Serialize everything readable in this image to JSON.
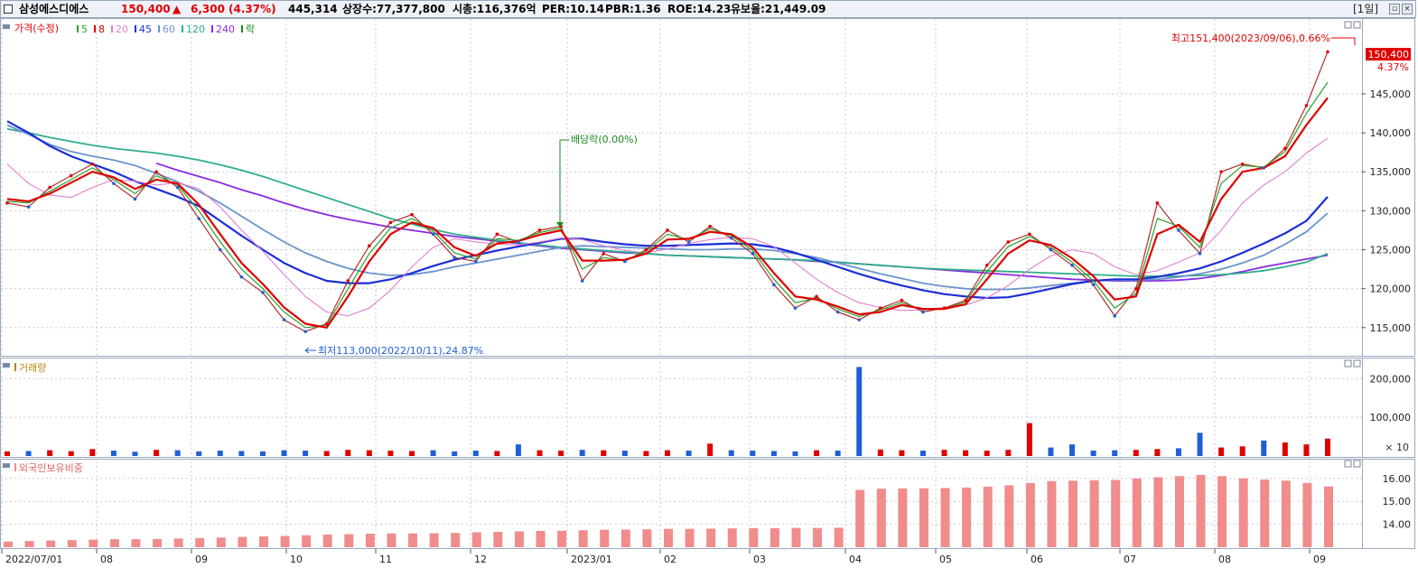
{
  "header": {
    "name": "삼성에스디에스",
    "price": "150,400",
    "arrow": "▲",
    "change": "6,300",
    "change_pct": "(4.37%)",
    "volume": "445,314",
    "shares": "상장수:77,377,800",
    "market_cap": "시총:116,376억",
    "per": "PER:10.14",
    "pbr": "PBR:1.36",
    "roe": "ROE:14.23",
    "float": "유보율:21,449.09",
    "period": "[1일]"
  },
  "legend": {
    "price": "가격(수정)",
    "ma": [
      {
        "label": "5",
        "color": "#2ca02c"
      },
      {
        "label": "8",
        "color": "#e00000"
      },
      {
        "label": "20",
        "color": "#e080d0"
      },
      {
        "label": "45",
        "color": "#1a2ed6"
      },
      {
        "label": "60",
        "color": "#6a94cc"
      },
      {
        "label": "120",
        "color": "#2fae8a"
      },
      {
        "label": "240",
        "color": "#8a2be2"
      }
    ],
    "ex": "락",
    "volume": "거래량",
    "foreign": "외국인보유비중"
  },
  "annotations": {
    "high": "최고151,400(2023/09/06),0.66%",
    "low": "최저113,000(2022/10/11),24.87%",
    "dividend": "배당락(0.00%)",
    "last_price": "150,400",
    "last_pct": "4.37%",
    "volume_unit": "× 10"
  },
  "colors": {
    "up": "#e00000",
    "down": "#1f5fd6",
    "foreign_bar": "#f08c8c"
  },
  "chart_data": [
    {
      "type": "line",
      "title": "가격(수정)",
      "x": [
        "2022/07/01",
        "2022/07/08",
        "2022/07/15",
        "2022/07/22",
        "2022/07/29",
        "2022/08/05",
        "2022/08/12",
        "2022/08/19",
        "2022/08/26",
        "2022/09/02",
        "2022/09/09",
        "2022/09/16",
        "2022/09/23",
        "2022/09/30",
        "2022/10/07",
        "2022/10/14",
        "2022/10/21",
        "2022/10/28",
        "2022/11/04",
        "2022/11/11",
        "2022/11/18",
        "2022/11/25",
        "2022/12/02",
        "2022/12/09",
        "2022/12/16",
        "2022/12/23",
        "2022/12/30",
        "2023/01/06",
        "2023/01/13",
        "2023/01/20",
        "2023/01/27",
        "2023/02/03",
        "2023/02/10",
        "2023/02/17",
        "2023/02/24",
        "2023/03/03",
        "2023/03/10",
        "2023/03/17",
        "2023/03/24",
        "2023/03/31",
        "2023/04/07",
        "2023/04/14",
        "2023/04/21",
        "2023/04/28",
        "2023/05/05",
        "2023/05/12",
        "2023/05/19",
        "2023/05/26",
        "2023/06/02",
        "2023/06/09",
        "2023/06/16",
        "2023/06/23",
        "2023/06/30",
        "2023/07/07",
        "2023/07/14",
        "2023/07/21",
        "2023/07/28",
        "2023/08/04",
        "2023/08/11",
        "2023/08/18",
        "2023/08/25",
        "2023/09/01",
        "2023/09/05"
      ],
      "series": [
        {
          "name": "가격(수정)",
          "values": [
            131000,
            130500,
            133000,
            134500,
            136000,
            133500,
            131500,
            135000,
            133000,
            129000,
            125000,
            121500,
            119500,
            116000,
            114500,
            115500,
            121000,
            125500,
            128500,
            129500,
            127000,
            124000,
            123500,
            127000,
            126000,
            127500,
            128000,
            121000,
            124500,
            123500,
            125000,
            127500,
            126000,
            128000,
            126500,
            124500,
            120500,
            117500,
            119000,
            117000,
            116000,
            117500,
            118500,
            117000,
            117500,
            118500,
            123000,
            126000,
            127000,
            125000,
            123000,
            120500,
            116500,
            120000,
            131000,
            127500,
            124500,
            135000,
            136000,
            135500,
            138000,
            143500,
            150400
          ]
        },
        {
          "name": "5",
          "values": [
            131200,
            131000,
            132500,
            134000,
            135500,
            134000,
            132200,
            134500,
            133300,
            130000,
            126000,
            122500,
            120000,
            117000,
            115000,
            115300,
            120000,
            124500,
            127800,
            129000,
            127400,
            124600,
            123800,
            126400,
            126200,
            127200,
            127800,
            122500,
            124000,
            123600,
            124800,
            127000,
            126300,
            127700,
            126800,
            124900,
            121200,
            118200,
            118800,
            117400,
            116400,
            117300,
            118200,
            117300,
            117400,
            118300,
            122200,
            125400,
            126700,
            125300,
            123400,
            121000,
            117500,
            119400,
            129000,
            128000,
            125300,
            133500,
            135800,
            135600,
            137600,
            142500,
            146500
          ]
        },
        {
          "name": "8",
          "values": [
            131500,
            131200,
            132200,
            133600,
            135000,
            134300,
            132800,
            134000,
            133500,
            130800,
            127000,
            123300,
            120600,
            117600,
            115500,
            115000,
            119000,
            123500,
            127000,
            128500,
            127800,
            125300,
            124200,
            125800,
            126100,
            126900,
            127500,
            123600,
            123600,
            123700,
            124500,
            126300,
            126400,
            127300,
            127000,
            125300,
            122000,
            119000,
            118600,
            117700,
            116700,
            117000,
            117900,
            117400,
            117400,
            118000,
            121200,
            124500,
            126200,
            125600,
            123900,
            121600,
            118600,
            119000,
            127000,
            128200,
            126000,
            131500,
            135000,
            135500,
            137000,
            141000,
            144500
          ]
        },
        {
          "name": "20",
          "values": [
            136000,
            133500,
            132000,
            131700,
            133000,
            134000,
            133800,
            133300,
            133600,
            132800,
            130500,
            127500,
            124800,
            121800,
            119000,
            117000,
            116500,
            117500,
            119800,
            122800,
            125300,
            126400,
            126000,
            125700,
            125600,
            126000,
            126500,
            126300,
            125500,
            124900,
            124600,
            125100,
            125800,
            126300,
            126600,
            126400,
            125400,
            123300,
            121200,
            119500,
            118200,
            117600,
            117200,
            117300,
            117600,
            117900,
            118800,
            120400,
            122500,
            124200,
            125000,
            124500,
            122800,
            121800,
            122300,
            123400,
            124600,
            127500,
            131000,
            133300,
            135000,
            137400,
            139300
          ]
        },
        {
          "name": "45",
          "values": [
            141500,
            140000,
            138300,
            137000,
            136000,
            135000,
            133800,
            132800,
            131800,
            130600,
            128700,
            126800,
            125000,
            123300,
            122000,
            121000,
            120700,
            120700,
            121200,
            122000,
            122900,
            123700,
            124300,
            124900,
            125400,
            125900,
            126400,
            126400,
            126000,
            125700,
            125500,
            125500,
            125600,
            125700,
            125800,
            125700,
            125300,
            124600,
            123700,
            122800,
            121900,
            121100,
            120400,
            119800,
            119300,
            119000,
            118800,
            118900,
            119400,
            120000,
            120600,
            121000,
            121200,
            121200,
            121500,
            122000,
            122600,
            123500,
            124600,
            125800,
            127100,
            128700,
            131800
          ]
        },
        {
          "name": "60",
          "values": [
            141000,
            139800,
            138500,
            137600,
            137000,
            136500,
            135800,
            134800,
            133700,
            132500,
            131000,
            129300,
            127600,
            126000,
            124600,
            123500,
            122600,
            122000,
            121700,
            121800,
            122200,
            122800,
            123300,
            123800,
            124300,
            124800,
            125300,
            125500,
            125400,
            125300,
            125200,
            125100,
            125000,
            125000,
            125100,
            125100,
            124900,
            124500,
            124000,
            123300,
            122600,
            121900,
            121300,
            120700,
            120300,
            120000,
            119900,
            119900,
            120100,
            120400,
            120700,
            121000,
            121100,
            121100,
            121200,
            121500,
            121900,
            122500,
            123300,
            124300,
            125700,
            127300,
            129700
          ]
        },
        {
          "name": "120",
          "values": [
            140500,
            140000,
            139400,
            138900,
            138400,
            138000,
            137700,
            137400,
            137000,
            136500,
            135900,
            135200,
            134400,
            133500,
            132600,
            131700,
            130800,
            129900,
            129000,
            128300,
            127600,
            127000,
            126600,
            126200,
            125900,
            125600,
            125300,
            125100,
            124900,
            124700,
            124500,
            124300,
            124200,
            124100,
            124000,
            123900,
            123800,
            123700,
            123600,
            123400,
            123200,
            123000,
            122800,
            122600,
            122500,
            122400,
            122300,
            122200,
            122100,
            122000,
            121900,
            121800,
            121700,
            121600,
            121600,
            121600,
            121700,
            121800,
            122000,
            122300,
            122800,
            123400,
            124500
          ]
        },
        {
          "name": "240",
          "values": [
            null,
            null,
            null,
            null,
            null,
            null,
            null,
            136100,
            135200,
            134400,
            133600,
            132700,
            131900,
            131000,
            130200,
            129500,
            128900,
            128400,
            127900,
            127500,
            127100,
            126700,
            126400,
            126100,
            125800,
            125500,
            125200,
            125000,
            124800,
            124600,
            124500,
            124300,
            124200,
            124100,
            124000,
            123900,
            123800,
            123700,
            123500,
            123400,
            123200,
            123000,
            122800,
            122600,
            122400,
            122200,
            122000,
            121800,
            121600,
            121400,
            121200,
            121100,
            121000,
            121000,
            121000,
            121100,
            121300,
            121700,
            122200,
            122800,
            123300,
            123800,
            124300
          ]
        }
      ],
      "ylim": [
        111500,
        154500
      ],
      "y_ticks": [
        115000,
        120000,
        125000,
        130000,
        135000,
        140000,
        145000
      ],
      "y_tick_labels": [
        "115,000",
        "120,000",
        "125,000",
        "130,000",
        "135,000",
        "140,000",
        "145,000"
      ],
      "grid": true
    },
    {
      "type": "bar",
      "title": "거래량",
      "x": [
        "2022/07/01",
        "2022/07/08",
        "2022/07/15",
        "2022/07/22",
        "2022/07/29",
        "2022/08/05",
        "2022/08/12",
        "2022/08/19",
        "2022/08/26",
        "2022/09/02",
        "2022/09/09",
        "2022/09/16",
        "2022/09/23",
        "2022/09/30",
        "2022/10/07",
        "2022/10/14",
        "2022/10/21",
        "2022/10/28",
        "2022/11/04",
        "2022/11/11",
        "2022/11/18",
        "2022/11/25",
        "2022/12/02",
        "2022/12/09",
        "2022/12/16",
        "2022/12/23",
        "2022/12/30",
        "2023/01/06",
        "2023/01/13",
        "2023/01/20",
        "2023/01/27",
        "2023/02/03",
        "2023/02/10",
        "2023/02/17",
        "2023/02/24",
        "2023/03/03",
        "2023/03/10",
        "2023/03/17",
        "2023/03/24",
        "2023/03/31",
        "2023/04/07",
        "2023/04/14",
        "2023/04/21",
        "2023/04/28",
        "2023/05/05",
        "2023/05/12",
        "2023/05/19",
        "2023/05/26",
        "2023/06/02",
        "2023/06/09",
        "2023/06/16",
        "2023/06/23",
        "2023/06/30",
        "2023/07/07",
        "2023/07/14",
        "2023/07/21",
        "2023/07/28",
        "2023/08/04",
        "2023/08/11",
        "2023/08/18",
        "2023/08/25",
        "2023/09/01",
        "2023/09/05"
      ],
      "values": [
        12000,
        13000,
        15000,
        12500,
        18000,
        14000,
        11000,
        16000,
        15000,
        12000,
        14000,
        13000,
        12000,
        15000,
        14000,
        13000,
        16000,
        15000,
        14000,
        13000,
        15000,
        12000,
        14000,
        13000,
        30000,
        15000,
        14000,
        16000,
        15000,
        14000,
        13000,
        15000,
        14000,
        32000,
        15000,
        14000,
        13000,
        12000,
        15000,
        14000,
        230000,
        17000,
        15000,
        14000,
        16000,
        15000,
        14000,
        16000,
        85000,
        22000,
        30000,
        14000,
        15000,
        16000,
        18000,
        20000,
        60000,
        22000,
        25000,
        40000,
        35000,
        30000,
        45000
      ],
      "ylim": [
        0,
        245000
      ],
      "y_ticks": [
        100000,
        200000
      ],
      "y_tick_labels": [
        "100,000",
        "200,000"
      ]
    },
    {
      "type": "bar",
      "title": "외국인보유비중",
      "x": [
        "2022/07/01",
        "2022/07/08",
        "2022/07/15",
        "2022/07/22",
        "2022/07/29",
        "2022/08/05",
        "2022/08/12",
        "2022/08/19",
        "2022/08/26",
        "2022/09/02",
        "2022/09/09",
        "2022/09/16",
        "2022/09/23",
        "2022/09/30",
        "2022/10/07",
        "2022/10/14",
        "2022/10/21",
        "2022/10/28",
        "2022/11/04",
        "2022/11/11",
        "2022/11/18",
        "2022/11/25",
        "2022/12/02",
        "2022/12/09",
        "2022/12/16",
        "2022/12/23",
        "2022/12/30",
        "2023/01/06",
        "2023/01/13",
        "2023/01/20",
        "2023/01/27",
        "2023/02/03",
        "2023/02/10",
        "2023/02/17",
        "2023/02/24",
        "2023/03/03",
        "2023/03/10",
        "2023/03/17",
        "2023/03/24",
        "2023/03/31",
        "2023/04/07",
        "2023/04/14",
        "2023/04/21",
        "2023/04/28",
        "2023/05/05",
        "2023/05/12",
        "2023/05/19",
        "2023/05/26",
        "2023/06/02",
        "2023/06/09",
        "2023/06/16",
        "2023/06/23",
        "2023/06/30",
        "2023/07/07",
        "2023/07/14",
        "2023/07/21",
        "2023/07/28",
        "2023/08/04",
        "2023/08/11",
        "2023/08/18",
        "2023/08/25",
        "2023/09/01",
        "2023/09/05"
      ],
      "values": [
        13.25,
        13.27,
        13.29,
        13.31,
        13.33,
        13.35,
        13.35,
        13.36,
        13.38,
        13.4,
        13.42,
        13.45,
        13.47,
        13.49,
        13.52,
        13.55,
        13.57,
        13.59,
        13.6,
        13.6,
        13.61,
        13.62,
        13.65,
        13.67,
        13.69,
        13.71,
        13.72,
        13.74,
        13.76,
        13.77,
        13.78,
        13.8,
        13.8,
        13.81,
        13.82,
        13.83,
        13.83,
        13.84,
        13.84,
        13.85,
        15.5,
        15.55,
        15.56,
        15.57,
        15.58,
        15.6,
        15.64,
        15.7,
        15.8,
        15.88,
        15.9,
        15.92,
        15.93,
        16.0,
        16.05,
        16.1,
        16.15,
        16.1,
        16.0,
        15.95,
        15.9,
        15.8,
        15.65
      ],
      "ylim": [
        13.0,
        16.7
      ],
      "y_ticks": [
        14.0,
        15.0,
        16.0
      ],
      "y_tick_labels": [
        "14.00",
        "15.00",
        "16.00"
      ]
    }
  ],
  "x_axis_labels": [
    "2022/07/01",
    "08",
    "09",
    "10",
    "11",
    "12",
    "2023/01",
    "02",
    "03",
    "04",
    "05",
    "06",
    "07",
    "08",
    "09"
  ]
}
